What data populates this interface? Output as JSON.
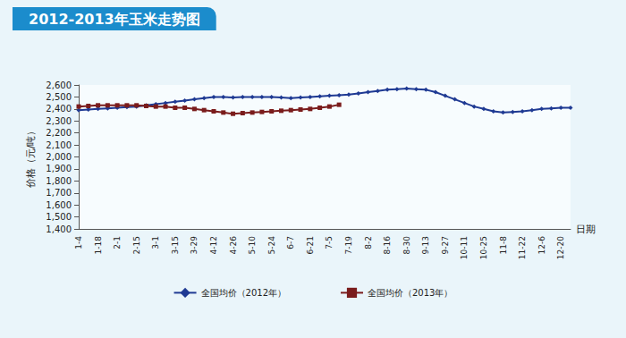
{
  "chart_data": {
    "type": "line",
    "title": "2012-2013年玉米走势图",
    "x_label": "日期",
    "y_label": "价格（元/吨）",
    "categories": [
      "1-4",
      null,
      "1-18",
      null,
      "2-1",
      null,
      "2-15",
      null,
      "3-1",
      null,
      "3-15",
      null,
      "3-29",
      null,
      "4-12",
      null,
      "4-26",
      null,
      "5-10",
      null,
      "5-24",
      null,
      "6-7",
      null,
      "6-21",
      null,
      "7-5",
      null,
      "7-19",
      null,
      "8-2",
      null,
      "8-16",
      null,
      "8-30",
      null,
      "9-13",
      null,
      "9-27",
      null,
      "10-11",
      null,
      "10-25",
      null,
      "11-8",
      null,
      "11-22",
      null,
      "12-6",
      null,
      "12-20",
      null
    ],
    "series": [
      {
        "name": "全国均价（2012年）",
        "color": "#1f3a93",
        "marker": "diamond",
        "line_style": "solid",
        "values": [
          2390,
          2395,
          2400,
          2405,
          2410,
          2415,
          2420,
          2430,
          2440,
          2450,
          2460,
          2470,
          2480,
          2490,
          2500,
          2500,
          2495,
          2500,
          2500,
          2500,
          2500,
          2495,
          2490,
          2495,
          2500,
          2505,
          2510,
          2515,
          2520,
          2530,
          2540,
          2550,
          2560,
          2565,
          2570,
          2565,
          2560,
          2540,
          2510,
          2480,
          2450,
          2420,
          2400,
          2380,
          2370,
          2375,
          2380,
          2390,
          2400,
          2405,
          2410,
          2410
        ]
      },
      {
        "name": "全国均价（2013年）",
        "color": "#7a1c1c",
        "marker": "square",
        "line_style": "solid",
        "values": [
          2420,
          2425,
          2430,
          2430,
          2430,
          2430,
          2430,
          2425,
          2420,
          2420,
          2410,
          2410,
          2400,
          2390,
          2380,
          2370,
          2360,
          2365,
          2370,
          2375,
          2380,
          2385,
          2390,
          2395,
          2400,
          2410,
          2420,
          2435,
          null,
          null,
          null,
          null,
          null,
          null,
          null,
          null,
          null,
          null,
          null,
          null,
          null,
          null,
          null,
          null,
          null,
          null,
          null,
          null,
          null,
          null,
          null,
          null
        ]
      }
    ],
    "ylim": [
      1400,
      2600
    ],
    "yticks": [
      1400,
      1500,
      1600,
      1700,
      1800,
      1900,
      2000,
      2100,
      2200,
      2300,
      2400,
      2500,
      2600
    ],
    "grid": false,
    "legend": "bottom"
  }
}
